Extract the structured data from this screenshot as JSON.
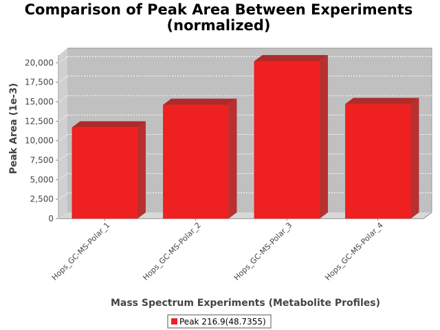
{
  "chart_data": {
    "type": "bar",
    "title_line1": "Comparison of Peak Area Between Experiments",
    "title_line2": "(normalized)",
    "xlabel": "Mass Spectrum Experiments (Metabolite Profiles)",
    "ylabel": "Peak Area (1e-3)",
    "categories": [
      "Hops_GC-MS-Polar_1",
      "Hops_GC-MS-Polar_2",
      "Hops_GC-MS-Polar_3",
      "Hops_GC-MS-Polar_4"
    ],
    "series": [
      {
        "name": "Peak 216.9(48.7355)",
        "values": [
          11700,
          14600,
          20200,
          14700
        ],
        "color": "#ee2020"
      }
    ],
    "ylim": [
      0,
      21000
    ],
    "yticks": [
      "0",
      "2,500",
      "5,000",
      "7,500",
      "10,000",
      "12,500",
      "15,000",
      "17,500",
      "20,000"
    ],
    "ytick_values": [
      0,
      2500,
      5000,
      7500,
      10000,
      12500,
      15000,
      17500,
      20000
    ],
    "grid": true,
    "legend_position": "bottom-center"
  }
}
